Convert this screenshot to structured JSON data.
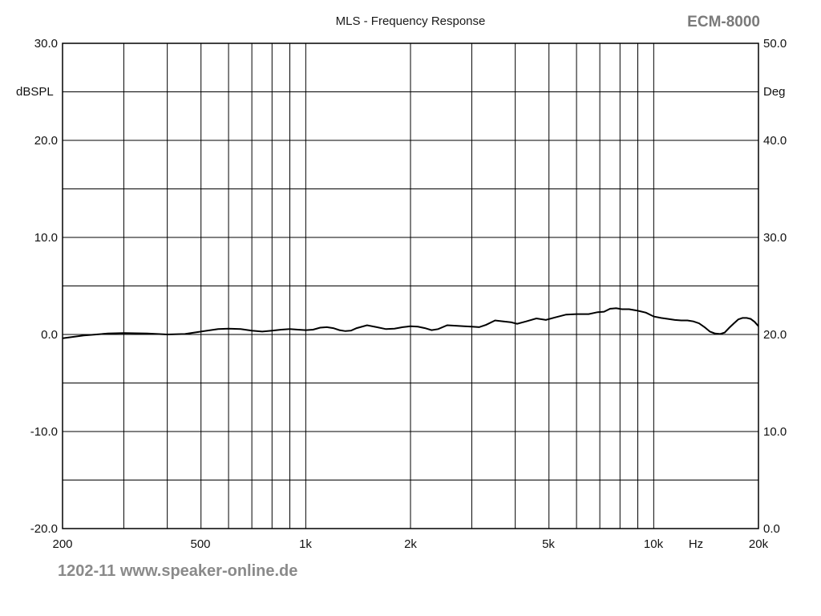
{
  "header": {
    "title": "MLS - Frequency Response",
    "product": "ECM-8000"
  },
  "footer": {
    "watermark": "1202-11 www.speaker-online.de"
  },
  "chart_data": {
    "type": "line",
    "title": "MLS - Frequency Response",
    "x_scale": "log",
    "xlim": [
      200,
      20000
    ],
    "ylim": [
      -20,
      30
    ],
    "y2lim": [
      0,
      50
    ],
    "ylabel": "dBSPL",
    "y2label": "Deg",
    "xlabel": "Hz",
    "grid": true,
    "x_tick_labels": [
      {
        "value": 200,
        "label": "200"
      },
      {
        "value": 500,
        "label": "500"
      },
      {
        "value": 1000,
        "label": "1k"
      },
      {
        "value": 2000,
        "label": "2k"
      },
      {
        "value": 5000,
        "label": "5k"
      },
      {
        "value": 10000,
        "label": "10k"
      },
      {
        "value": 20000,
        "label": "20k"
      }
    ],
    "y_tick_labels": [
      "30.0",
      "20.0",
      "10.0",
      "0.0",
      "-10.0",
      "-20.0"
    ],
    "y2_tick_labels": [
      "50.0",
      "40.0",
      "30.0",
      "20.0",
      "10.0",
      "0.0"
    ],
    "colors": {
      "curve": "#000000",
      "grid": "#000000"
    },
    "series": [
      {
        "values": [
          [
            200,
            -0.4
          ],
          [
            230,
            -0.1
          ],
          [
            270,
            0.1
          ],
          [
            300,
            0.15
          ],
          [
            350,
            0.1
          ],
          [
            400,
            0.0
          ],
          [
            450,
            0.05
          ],
          [
            500,
            0.3
          ],
          [
            560,
            0.55
          ],
          [
            600,
            0.6
          ],
          [
            650,
            0.55
          ],
          [
            700,
            0.4
          ],
          [
            750,
            0.3
          ],
          [
            800,
            0.4
          ],
          [
            850,
            0.5
          ],
          [
            900,
            0.55
          ],
          [
            950,
            0.5
          ],
          [
            1000,
            0.45
          ],
          [
            1050,
            0.5
          ],
          [
            1100,
            0.7
          ],
          [
            1150,
            0.75
          ],
          [
            1200,
            0.65
          ],
          [
            1250,
            0.45
          ],
          [
            1300,
            0.35
          ],
          [
            1350,
            0.4
          ],
          [
            1400,
            0.65
          ],
          [
            1500,
            0.95
          ],
          [
            1600,
            0.75
          ],
          [
            1700,
            0.55
          ],
          [
            1800,
            0.6
          ],
          [
            1900,
            0.75
          ],
          [
            2000,
            0.85
          ],
          [
            2100,
            0.8
          ],
          [
            2200,
            0.65
          ],
          [
            2300,
            0.45
          ],
          [
            2400,
            0.55
          ],
          [
            2550,
            0.95
          ],
          [
            2700,
            0.9
          ],
          [
            2850,
            0.85
          ],
          [
            3000,
            0.8
          ],
          [
            3150,
            0.75
          ],
          [
            3300,
            1.0
          ],
          [
            3500,
            1.45
          ],
          [
            3700,
            1.35
          ],
          [
            3900,
            1.25
          ],
          [
            4050,
            1.1
          ],
          [
            4300,
            1.35
          ],
          [
            4600,
            1.65
          ],
          [
            4900,
            1.5
          ],
          [
            5200,
            1.75
          ],
          [
            5600,
            2.05
          ],
          [
            6000,
            2.1
          ],
          [
            6500,
            2.1
          ],
          [
            6900,
            2.3
          ],
          [
            7200,
            2.35
          ],
          [
            7500,
            2.65
          ],
          [
            7800,
            2.7
          ],
          [
            8100,
            2.6
          ],
          [
            8500,
            2.6
          ],
          [
            9000,
            2.45
          ],
          [
            9500,
            2.25
          ],
          [
            10000,
            1.85
          ],
          [
            10500,
            1.7
          ],
          [
            11000,
            1.6
          ],
          [
            11500,
            1.5
          ],
          [
            12000,
            1.45
          ],
          [
            12500,
            1.45
          ],
          [
            13000,
            1.35
          ],
          [
            13500,
            1.15
          ],
          [
            14000,
            0.75
          ],
          [
            14500,
            0.3
          ],
          [
            15000,
            0.1
          ],
          [
            15500,
            0.05
          ],
          [
            16000,
            0.2
          ],
          [
            16500,
            0.7
          ],
          [
            17000,
            1.15
          ],
          [
            17500,
            1.55
          ],
          [
            18000,
            1.7
          ],
          [
            18500,
            1.7
          ],
          [
            19000,
            1.6
          ],
          [
            19500,
            1.3
          ],
          [
            20000,
            0.85
          ]
        ]
      }
    ]
  }
}
